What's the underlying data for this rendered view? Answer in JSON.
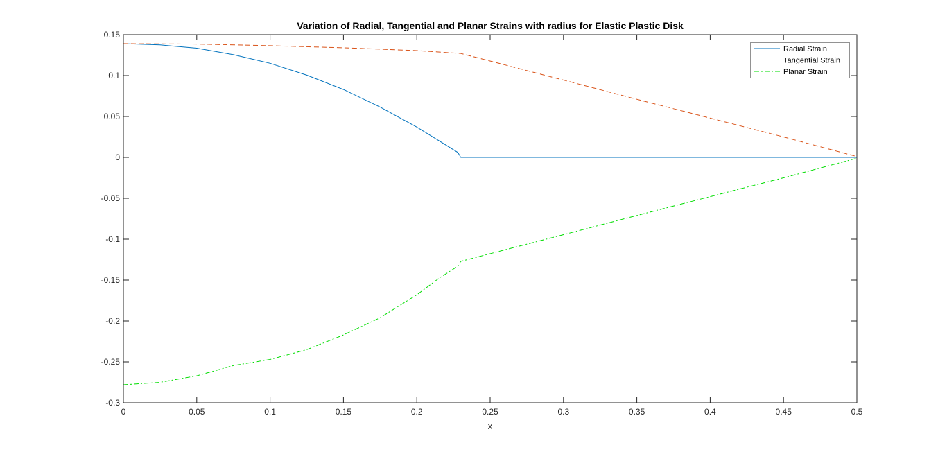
{
  "chart_data": {
    "type": "line",
    "title": "Variation of Radial, Tangential and Planar Strains with radius for Elastic Plastic Disk",
    "xlabel": "x",
    "ylabel": "",
    "xlim": [
      0,
      0.5
    ],
    "ylim": [
      -0.3,
      0.15
    ],
    "x_ticks": [
      "0",
      "0.05",
      "0.1",
      "0.15",
      "0.2",
      "0.25",
      "0.3",
      "0.35",
      "0.4",
      "0.45",
      "0.5"
    ],
    "x_tick_values": [
      0,
      0.05,
      0.1,
      0.15,
      0.2,
      0.25,
      0.3,
      0.35,
      0.4,
      0.45,
      0.5
    ],
    "y_ticks": [
      "0.15",
      "0.1",
      "0.05",
      "0",
      "-0.05",
      "-0.1",
      "-0.15",
      "-0.2",
      "-0.25",
      "-0.3"
    ],
    "y_tick_values": [
      0.15,
      0.1,
      0.05,
      0,
      -0.05,
      -0.1,
      -0.15,
      -0.2,
      -0.25,
      -0.3
    ],
    "grid": false,
    "legend_position": "top-right",
    "series": [
      {
        "name": "Radial Strain",
        "color": "#0072BD",
        "style": "solid",
        "x": [
          0,
          0.025,
          0.05,
          0.075,
          0.1,
          0.125,
          0.15,
          0.175,
          0.2,
          0.215,
          0.228,
          0.23,
          0.25,
          0.3,
          0.35,
          0.4,
          0.45,
          0.5
        ],
        "y": [
          0.139,
          0.1375,
          0.1335,
          0.1255,
          0.115,
          0.1005,
          0.083,
          0.0615,
          0.037,
          0.0205,
          0.006,
          0.0,
          0.0,
          0.0,
          0.0,
          0.0,
          0.0,
          0.0
        ]
      },
      {
        "name": "Tangential Strain",
        "color": "#D95319",
        "style": "dashed",
        "x": [
          0,
          0.05,
          0.1,
          0.15,
          0.2,
          0.23,
          0.3,
          0.35,
          0.4,
          0.45,
          0.5
        ],
        "y": [
          0.139,
          0.1385,
          0.1365,
          0.134,
          0.1305,
          0.127,
          0.0945,
          0.071,
          0.048,
          0.025,
          0.001
        ]
      },
      {
        "name": "Planar Strain",
        "color": "#00DD00",
        "style": "dashdot",
        "x": [
          0,
          0.025,
          0.05,
          0.075,
          0.1,
          0.125,
          0.15,
          0.175,
          0.2,
          0.215,
          0.228,
          0.23,
          0.3,
          0.35,
          0.4,
          0.45,
          0.5
        ],
        "y": [
          -0.278,
          -0.275,
          -0.267,
          -0.2545,
          -0.247,
          -0.235,
          -0.217,
          -0.196,
          -0.168,
          -0.148,
          -0.133,
          -0.127,
          -0.0945,
          -0.071,
          -0.048,
          -0.025,
          -0.001
        ]
      }
    ]
  }
}
